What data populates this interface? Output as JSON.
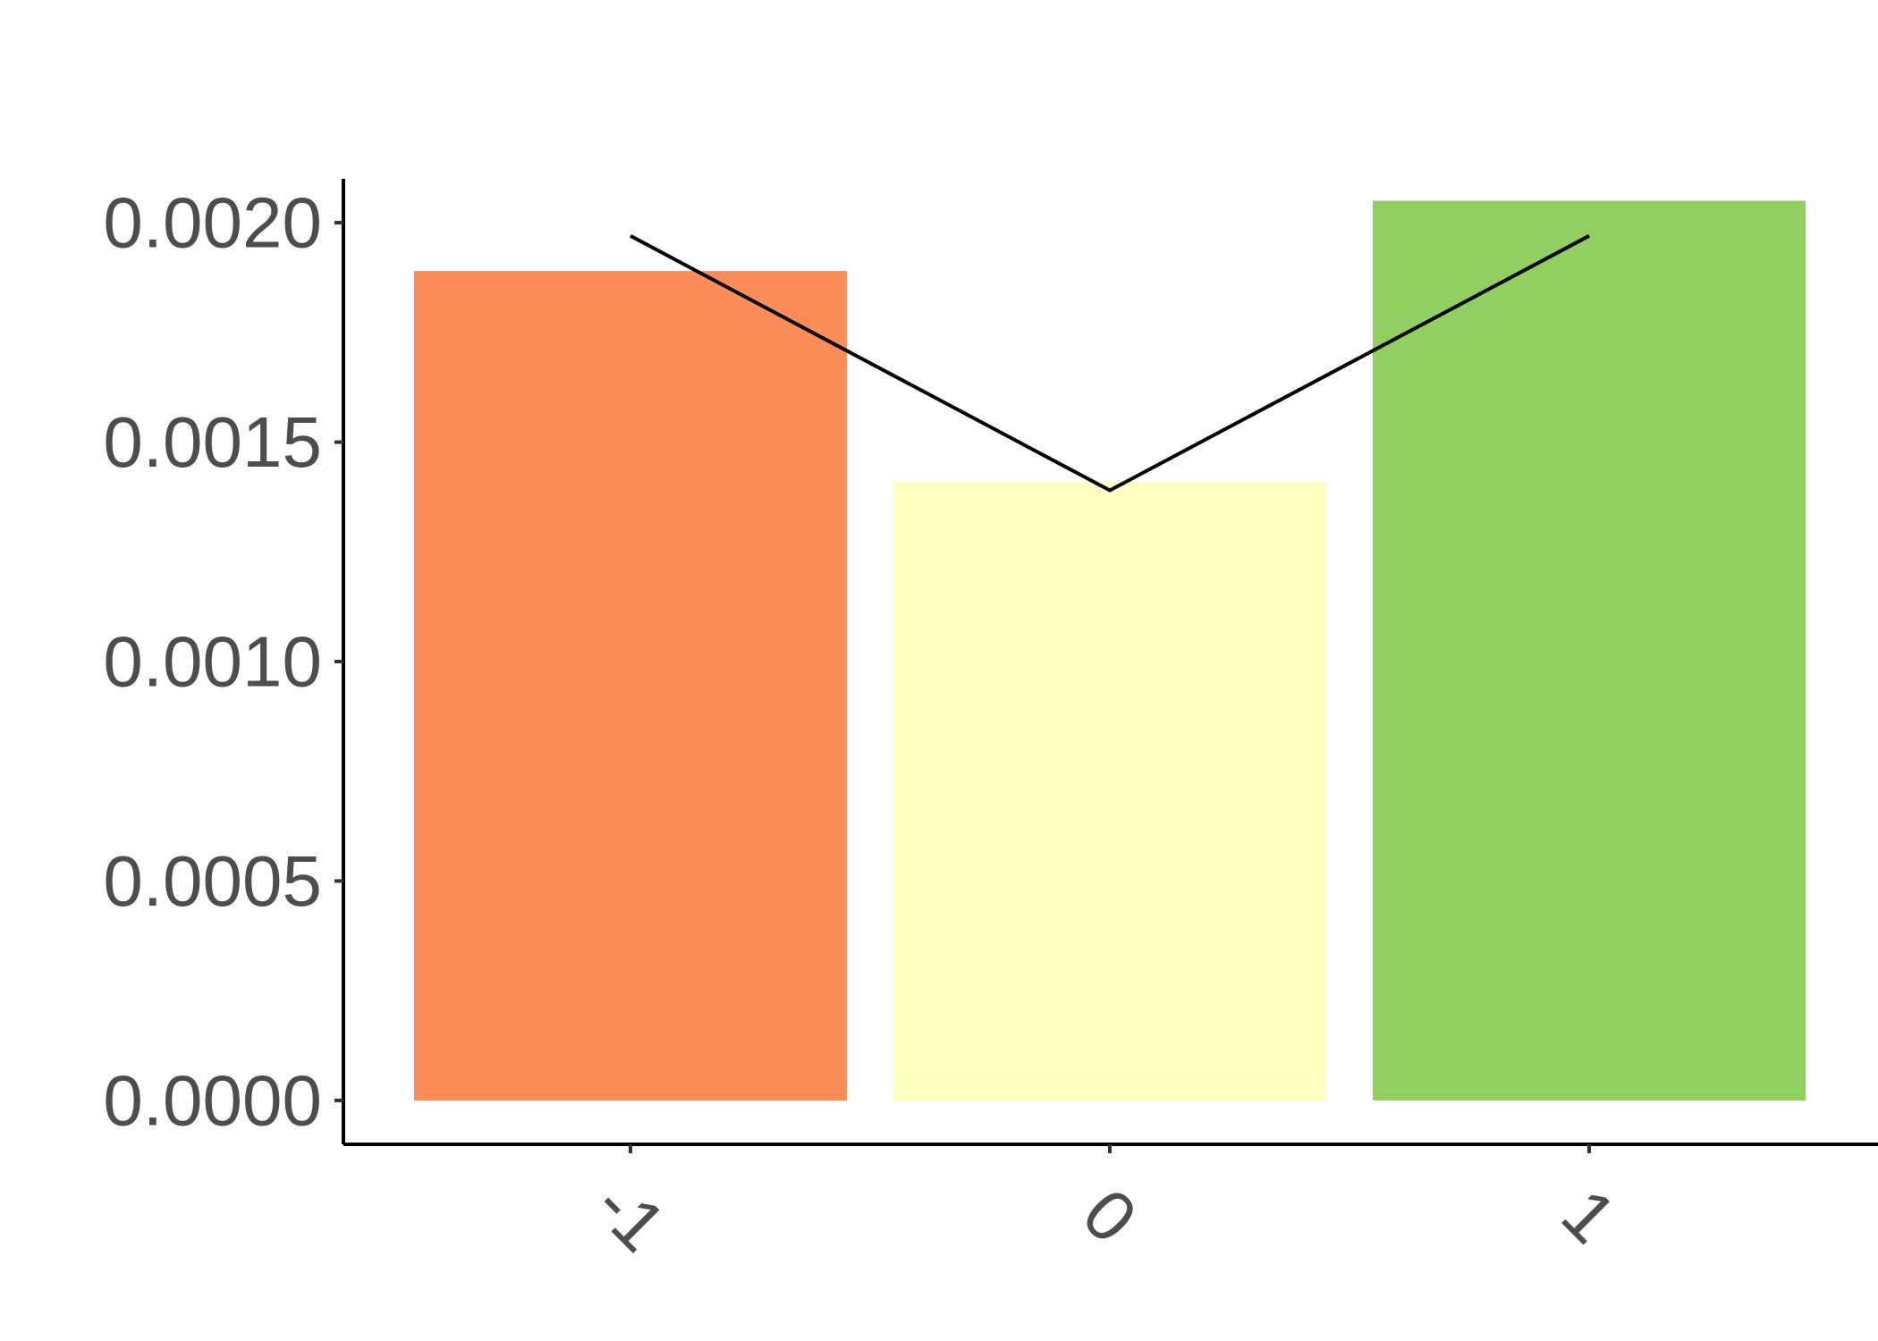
{
  "chart_data": {
    "type": "bar",
    "title": "",
    "xlabel": "",
    "ylabel": "",
    "categories": [
      "-1",
      "0",
      "1"
    ],
    "values": [
      0.00189,
      0.00141,
      0.00205
    ],
    "bar_colors": [
      "#FC8D59",
      "#FFFFBF",
      "#91CF60"
    ],
    "line": {
      "values": [
        0.00197,
        0.00139,
        0.00197
      ],
      "color": "#000000"
    },
    "ylim": [
      -0.0001,
      0.0021
    ],
    "yticks": [
      0,
      0.0005,
      0.001,
      0.0015,
      0.002
    ],
    "ytick_labels": [
      "0.0000",
      "0.0005",
      "0.0010",
      "0.0015",
      "0.0020"
    ],
    "grid": false,
    "legend": "none"
  }
}
